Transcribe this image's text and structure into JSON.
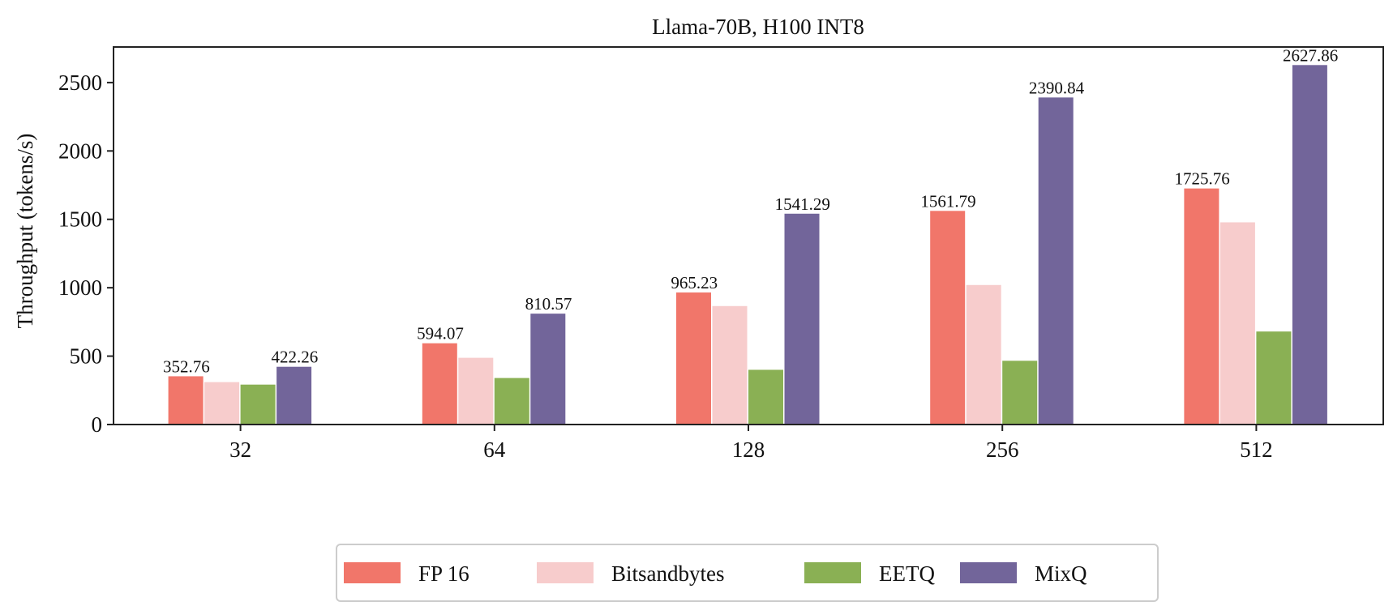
{
  "chart_data": {
    "type": "bar",
    "title": "Llama-70B, H100 INT8",
    "xlabel": "",
    "ylabel": "Throughput (tokens/s)",
    "categories": [
      "32",
      "64",
      "128",
      "256",
      "512"
    ],
    "ylim": [
      0,
      2760
    ],
    "yticks": [
      0,
      500,
      1000,
      1500,
      2000,
      2500
    ],
    "grid": false,
    "legend_position": "bottom-center",
    "series": [
      {
        "name": "FP 16",
        "color": "#f1766a",
        "values": [
          352.76,
          594.07,
          965.23,
          1561.79,
          1725.76
        ],
        "labels": [
          "352.76",
          "594.07",
          "965.23",
          "1561.79",
          "1725.76"
        ]
      },
      {
        "name": "Bitsandbytes",
        "color": "#f7cccc",
        "values": [
          310,
          488,
          866,
          1020,
          1478
        ],
        "labels": [
          "",
          "",
          "",
          "",
          ""
        ]
      },
      {
        "name": "EETQ",
        "color": "#8ab054",
        "values": [
          292,
          340,
          400,
          466,
          680
        ],
        "labels": [
          "",
          "",
          "",
          "",
          ""
        ]
      },
      {
        "name": "MixQ",
        "color": "#72659a",
        "values": [
          422.26,
          810.57,
          1541.29,
          2390.84,
          2627.86
        ],
        "labels": [
          "422.26",
          "810.57",
          "1541.29",
          "2390.84",
          "2627.86"
        ]
      }
    ]
  }
}
